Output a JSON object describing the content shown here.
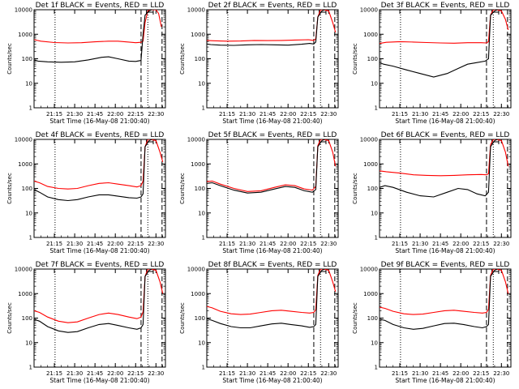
{
  "figure": {
    "y_label": "Counts/sec",
    "x_label": "Start Time (16-May-08 21:00:40)",
    "x_ticks": [
      "21:15",
      "21:30",
      "21:45",
      "22:00",
      "22:15",
      "22:30"
    ],
    "y_ticks": [
      "1",
      "10",
      "100",
      "1000",
      "10000"
    ]
  },
  "colors": {
    "events": "#000000",
    "lld": "#ff0000"
  },
  "chart_data": [
    {
      "type": "line",
      "title": "Det 1f BLACK = Events, RED = LLD",
      "xlabel": "Start Time (16-May-08 21:00:40)",
      "ylabel": "Counts/sec",
      "ylog": true,
      "ylim": [
        1,
        10000
      ],
      "x_unit": "minutes after 21:00:40",
      "xlim": [
        0,
        97
      ],
      "series": [
        {
          "name": "Events",
          "color": "#000000",
          "x": [
            0,
            3,
            10,
            20,
            30,
            40,
            50,
            55,
            62,
            70,
            75,
            79,
            80.5,
            82,
            85,
            87
          ],
          "y": [
            90,
            80,
            75,
            72,
            75,
            90,
            115,
            120,
            100,
            80,
            78,
            85,
            1000,
            6000,
            9000,
            14000
          ]
        },
        {
          "name": "LLD",
          "color": "#ff0000",
          "x": [
            0,
            5,
            15,
            25,
            35,
            45,
            55,
            62,
            70,
            75,
            79,
            80.5,
            82,
            84,
            86,
            90,
            92,
            94
          ],
          "y": [
            600,
            520,
            460,
            440,
            450,
            490,
            520,
            520,
            480,
            450,
            470,
            520,
            3000,
            9000,
            14000,
            11000,
            7000,
            2000
          ]
        }
      ]
    },
    {
      "type": "line",
      "title": "Det 2f BLACK = Events, RED = LLD",
      "xlabel": "Start Time (16-May-08 21:00:40)",
      "ylabel": "Counts/sec",
      "ylog": true,
      "ylim": [
        1,
        10000
      ],
      "x_unit": "minutes after 21:00:40",
      "xlim": [
        0,
        97
      ],
      "series": [
        {
          "name": "Events",
          "color": "#000000",
          "x": [
            0,
            3,
            10,
            20,
            30,
            40,
            50,
            60,
            70,
            76,
            79,
            80.5,
            82,
            85,
            87
          ],
          "y": [
            400,
            380,
            360,
            350,
            370,
            380,
            370,
            360,
            390,
            420,
            400,
            480,
            5000,
            9000,
            14000
          ]
        },
        {
          "name": "LLD",
          "color": "#ff0000",
          "x": [
            0,
            5,
            15,
            25,
            35,
            45,
            55,
            65,
            75,
            79,
            80.5,
            82,
            84,
            86,
            90,
            93,
            95
          ],
          "y": [
            560,
            540,
            520,
            530,
            560,
            550,
            560,
            580,
            600,
            560,
            650,
            5000,
            10000,
            14000,
            9000,
            3000,
            1200
          ]
        }
      ]
    },
    {
      "type": "line",
      "title": "Det 3f BLACK = Events, RED = LLD",
      "xlabel": "Start Time (16-May-08 21:00:40)",
      "ylabel": "Counts/sec",
      "ylog": true,
      "ylim": [
        1,
        10000
      ],
      "x_unit": "minutes after 21:00:40",
      "xlim": [
        0,
        97
      ],
      "series": [
        {
          "name": "Events",
          "color": "#000000",
          "x": [
            0,
            3,
            10,
            20,
            30,
            40,
            50,
            58,
            65,
            72,
            78,
            80.5,
            82,
            85,
            87
          ],
          "y": [
            70,
            60,
            50,
            35,
            25,
            18,
            25,
            40,
            60,
            70,
            80,
            100,
            6000,
            9000,
            14000
          ]
        },
        {
          "name": "LLD",
          "color": "#ff0000",
          "x": [
            0,
            5,
            15,
            25,
            35,
            45,
            55,
            65,
            75,
            79,
            80.5,
            82,
            84,
            86,
            90,
            93,
            95
          ],
          "y": [
            420,
            470,
            500,
            480,
            460,
            440,
            430,
            450,
            450,
            440,
            500,
            6000,
            11000,
            14000,
            9000,
            4000,
            1500
          ]
        }
      ]
    },
    {
      "type": "line",
      "title": "Det 4f BLACK = Events, RED = LLD",
      "xlabel": "Start Time (16-May-08 21:00:40)",
      "ylabel": "Counts/sec",
      "ylog": true,
      "ylim": [
        1,
        10000
      ],
      "x_unit": "minutes after 21:00:40",
      "xlim": [
        0,
        97
      ],
      "series": [
        {
          "name": "Events",
          "color": "#000000",
          "x": [
            0,
            4,
            10,
            18,
            25,
            32,
            40,
            48,
            55,
            62,
            70,
            76,
            79,
            80.5,
            82,
            85,
            87
          ],
          "y": [
            90,
            70,
            45,
            35,
            32,
            35,
            45,
            55,
            55,
            48,
            42,
            40,
            45,
            60,
            5000,
            9000,
            14000
          ]
        },
        {
          "name": "LLD",
          "color": "#ff0000",
          "x": [
            0,
            4,
            10,
            18,
            25,
            32,
            40,
            48,
            55,
            62,
            70,
            76,
            79,
            80.5,
            82,
            84,
            86,
            90,
            93,
            95
          ],
          "y": [
            200,
            170,
            120,
            100,
            95,
            100,
            130,
            160,
            170,
            150,
            130,
            115,
            130,
            200,
            5000,
            10000,
            14000,
            9000,
            3000,
            1200
          ]
        }
      ]
    },
    {
      "type": "line",
      "title": "Det 5f BLACK = Events, RED = LLD",
      "xlabel": "Start Time (16-May-08 21:00:40)",
      "ylabel": "Counts/sec",
      "ylog": true,
      "ylim": [
        1,
        10000
      ],
      "x_unit": "minutes after 21:00:40",
      "xlim": [
        0,
        97
      ],
      "series": [
        {
          "name": "Events",
          "color": "#000000",
          "x": [
            0,
            4,
            10,
            20,
            30,
            40,
            50,
            58,
            65,
            72,
            78,
            80.5,
            82,
            85,
            87
          ],
          "y": [
            160,
            170,
            130,
            85,
            65,
            70,
            95,
            120,
            110,
            80,
            70,
            90,
            5000,
            9000,
            14000
          ]
        },
        {
          "name": "LLD",
          "color": "#ff0000",
          "x": [
            0,
            4,
            10,
            20,
            30,
            40,
            50,
            58,
            65,
            72,
            78,
            80.5,
            82,
            84,
            86,
            90,
            93,
            95
          ],
          "y": [
            190,
            200,
            150,
            100,
            75,
            80,
            110,
            140,
            130,
            95,
            85,
            120,
            5500,
            10000,
            14000,
            9000,
            3000,
            800
          ]
        }
      ]
    },
    {
      "type": "line",
      "title": "Det 6f BLACK = Events, RED = LLD",
      "xlabel": "Start Time (16-May-08 21:00:40)",
      "ylabel": "Counts/sec",
      "ylog": true,
      "ylim": [
        1,
        10000
      ],
      "x_unit": "minutes after 21:00:40",
      "xlim": [
        0,
        97
      ],
      "series": [
        {
          "name": "Events",
          "color": "#000000",
          "x": [
            0,
            4,
            10,
            20,
            30,
            40,
            50,
            58,
            65,
            72,
            78,
            80.5,
            82,
            85,
            87
          ],
          "y": [
            110,
            130,
            110,
            70,
            50,
            45,
            70,
            100,
            90,
            60,
            50,
            70,
            5000,
            9000,
            14000
          ]
        },
        {
          "name": "LLD",
          "color": "#ff0000",
          "x": [
            0,
            5,
            15,
            25,
            35,
            45,
            55,
            65,
            75,
            79,
            80.5,
            82,
            84,
            86,
            90,
            93,
            95
          ],
          "y": [
            520,
            480,
            420,
            360,
            340,
            330,
            340,
            360,
            370,
            360,
            400,
            6000,
            11000,
            14000,
            9000,
            3000,
            800
          ]
        }
      ]
    },
    {
      "type": "line",
      "title": "Det 7f BLACK = Events, RED = LLD",
      "xlabel": "Start Time (16-May-08 21:00:40)",
      "ylabel": "Counts/sec",
      "ylog": true,
      "ylim": [
        1,
        10000
      ],
      "x_unit": "minutes after 21:00:40",
      "xlim": [
        0,
        97
      ],
      "series": [
        {
          "name": "Events",
          "color": "#000000",
          "x": [
            0,
            4,
            10,
            18,
            25,
            32,
            40,
            48,
            55,
            62,
            70,
            76,
            79,
            80.5,
            82,
            85,
            87
          ],
          "y": [
            90,
            75,
            45,
            30,
            26,
            28,
            40,
            55,
            60,
            50,
            40,
            35,
            40,
            55,
            5000,
            9000,
            14000
          ]
        },
        {
          "name": "LLD",
          "color": "#ff0000",
          "x": [
            0,
            4,
            10,
            18,
            25,
            32,
            40,
            48,
            55,
            62,
            70,
            76,
            79,
            80.5,
            82,
            84,
            86,
            90,
            93,
            95
          ],
          "y": [
            200,
            170,
            110,
            75,
            65,
            70,
            100,
            140,
            160,
            140,
            110,
            95,
            110,
            180,
            5000,
            10000,
            14000,
            9000,
            3000,
            1000
          ]
        }
      ]
    },
    {
      "type": "line",
      "title": "Det 8f BLACK = Events, RED = LLD",
      "xlabel": "Start Time (16-May-08 21:00:40)",
      "ylabel": "Counts/sec",
      "ylog": true,
      "ylim": [
        1,
        10000
      ],
      "x_unit": "minutes after 21:00:40",
      "xlim": [
        0,
        97
      ],
      "series": [
        {
          "name": "Events",
          "color": "#000000",
          "x": [
            0,
            4,
            10,
            18,
            25,
            32,
            40,
            48,
            55,
            62,
            70,
            76,
            79,
            80.5,
            82,
            85,
            87
          ],
          "y": [
            95,
            80,
            60,
            45,
            40,
            40,
            48,
            58,
            62,
            55,
            48,
            42,
            45,
            55,
            5000,
            9000,
            14000
          ]
        },
        {
          "name": "LLD",
          "color": "#ff0000",
          "x": [
            0,
            4,
            10,
            18,
            25,
            32,
            40,
            48,
            55,
            62,
            70,
            76,
            79,
            80.5,
            82,
            84,
            86,
            90,
            93,
            95
          ],
          "y": [
            300,
            260,
            190,
            150,
            140,
            145,
            170,
            200,
            210,
            190,
            170,
            160,
            170,
            220,
            5500,
            10000,
            14000,
            9000,
            3000,
            1200
          ]
        }
      ]
    },
    {
      "type": "line",
      "title": "Det 9f BLACK = Events, RED = LLD",
      "xlabel": "Start Time (16-May-08 21:00:40)",
      "ylabel": "Counts/sec",
      "ylog": true,
      "ylim": [
        1,
        10000
      ],
      "x_unit": "minutes after 21:00:40",
      "xlim": [
        0,
        97
      ],
      "series": [
        {
          "name": "Events",
          "color": "#000000",
          "x": [
            0,
            4,
            10,
            18,
            25,
            32,
            40,
            48,
            55,
            62,
            70,
            76,
            79,
            80.5,
            82,
            85,
            87
          ],
          "y": [
            90,
            80,
            55,
            40,
            35,
            38,
            48,
            60,
            62,
            55,
            45,
            40,
            45,
            55,
            5000,
            9000,
            14000
          ]
        },
        {
          "name": "LLD",
          "color": "#ff0000",
          "x": [
            0,
            4,
            10,
            18,
            25,
            32,
            40,
            48,
            55,
            62,
            70,
            76,
            79,
            80.5,
            82,
            84,
            86,
            90,
            93,
            95
          ],
          "y": [
            280,
            250,
            190,
            150,
            140,
            145,
            170,
            200,
            210,
            190,
            170,
            160,
            170,
            230,
            5500,
            10000,
            14000,
            9000,
            3000,
            1000
          ]
        }
      ]
    }
  ]
}
